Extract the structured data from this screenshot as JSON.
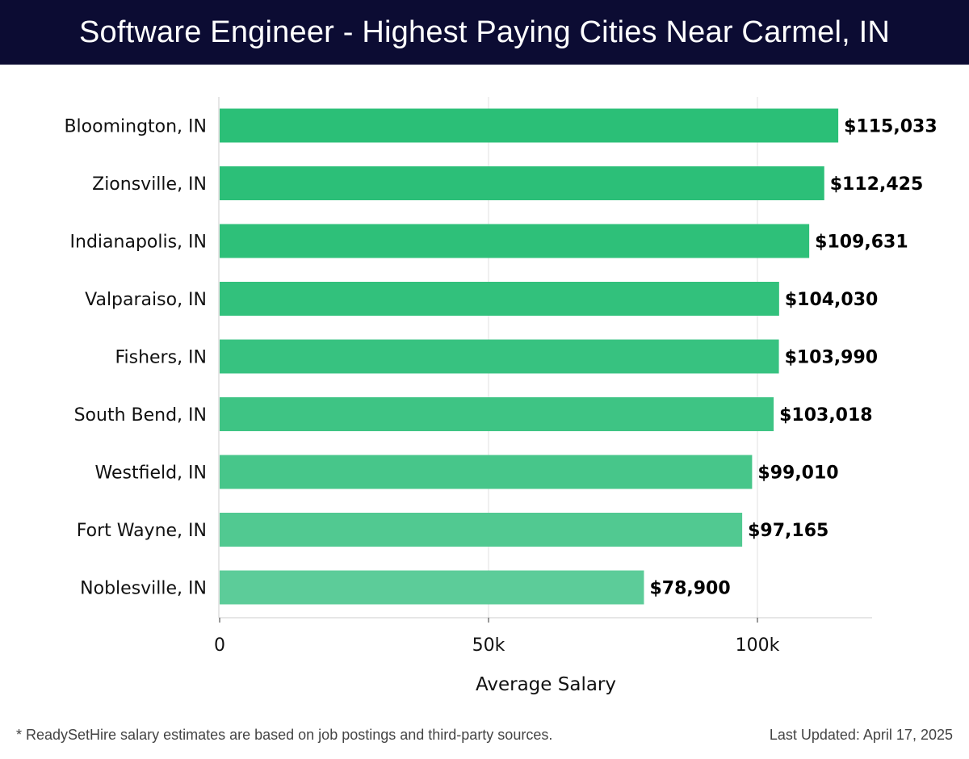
{
  "header": {
    "title": "Software Engineer - Highest Paying Cities Near Carmel, IN"
  },
  "chart_data": {
    "type": "bar",
    "orientation": "horizontal",
    "title": "Software Engineer - Highest Paying Cities Near Carmel, IN",
    "xlabel": "Average Salary",
    "ylabel": "",
    "xlim": [
      0,
      121000
    ],
    "xticks": [
      0,
      50000,
      100000
    ],
    "xtick_labels": [
      "0",
      "50k",
      "100k"
    ],
    "grid": true,
    "categories": [
      "Bloomington, IN",
      "Zionsville, IN",
      "Indianapolis, IN",
      "Valparaiso, IN",
      "Fishers, IN",
      "South Bend, IN",
      "Westfield, IN",
      "Fort Wayne, IN",
      "Noblesville, IN"
    ],
    "values": [
      115033,
      112425,
      109631,
      104030,
      103990,
      103018,
      99010,
      97165,
      78900
    ],
    "value_labels": [
      "$115,033",
      "$112,425",
      "$109,631",
      "$104,030",
      "$103,990",
      "$103,018",
      "$99,010",
      "$97,165",
      "$78,900"
    ],
    "colors": {
      "bar_top": "#2bbf77",
      "bar_bottom": "#5ccc99",
      "grid": "#e2e2e2",
      "axis": "#cccccc"
    }
  },
  "footer": {
    "note": "* ReadySetHire salary estimates are based on job postings and third-party sources.",
    "updated": "Last Updated: April 17, 2025"
  }
}
